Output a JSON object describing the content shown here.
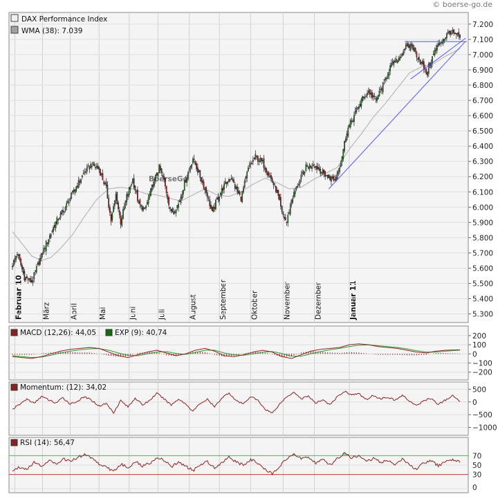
{
  "watermark": "© boerse-go.de",
  "background_watermark": "BoerseGo",
  "colors": {
    "up": "#2d8a2d",
    "down": "#b01818",
    "wma": "#b8b8b8",
    "trend": "#5555ff",
    "macd": "#8b2020",
    "signal": "#2a9a2a",
    "osc": "#8b2020",
    "rsi_over": "#33cc33",
    "rsi_under": "#cc3333"
  },
  "legend": {
    "price_name": "DAX Performance Index",
    "wma_label": "WMA (38): 7.039",
    "macd_label": "MACD (12,26): 44,05",
    "exp_label": "EXP (9): 40,74",
    "momentum_label": "Momentum: (12): 34,02",
    "rsi_label": "RSI (14): 56,47"
  },
  "chart_data": [
    {
      "type": "candlestick",
      "title": "DAX Performance Index",
      "ylim": [
        5280,
        7240
      ],
      "y_ticks": [
        "5.300",
        "5.400",
        "5.500",
        "5.600",
        "5.700",
        "5.800",
        "5.900",
        "6.000",
        "6.100",
        "6.200",
        "6.300",
        "6.400",
        "6.500",
        "6.600",
        "6.700",
        "6.800",
        "6.900",
        "7.000",
        "7.100",
        "7.200"
      ],
      "x_labels": [
        "Februar 10",
        "März",
        "April",
        "Mai",
        "Juni",
        "Juli",
        "August",
        "September",
        "Oktober",
        "November",
        "Dezember",
        "Januar 11"
      ],
      "bold_x_labels": [
        "Februar 10",
        "Januar 11"
      ],
      "grid": true,
      "close_path": [
        [
          0,
          5620
        ],
        [
          4,
          5700
        ],
        [
          10,
          5540
        ],
        [
          16,
          5510
        ],
        [
          22,
          5640
        ],
        [
          28,
          5760
        ],
        [
          36,
          5900
        ],
        [
          44,
          6000
        ],
        [
          52,
          6120
        ],
        [
          60,
          6230
        ],
        [
          66,
          6280
        ],
        [
          72,
          6250
        ],
        [
          78,
          6120
        ],
        [
          82,
          5910
        ],
        [
          86,
          6080
        ],
        [
          90,
          5900
        ],
        [
          95,
          6070
        ],
        [
          100,
          6180
        ],
        [
          105,
          6020
        ],
        [
          110,
          5980
        ],
        [
          116,
          6130
        ],
        [
          122,
          6260
        ],
        [
          126,
          6170
        ],
        [
          132,
          5960
        ],
        [
          138,
          6020
        ],
        [
          144,
          6180
        ],
        [
          150,
          6320
        ],
        [
          154,
          6240
        ],
        [
          158,
          6160
        ],
        [
          162,
          6080
        ],
        [
          166,
          5960
        ],
        [
          170,
          6050
        ],
        [
          176,
          6140
        ],
        [
          182,
          6200
        ],
        [
          186,
          6110
        ],
        [
          190,
          6060
        ],
        [
          196,
          6250
        ],
        [
          202,
          6330
        ],
        [
          208,
          6290
        ],
        [
          214,
          6200
        ],
        [
          220,
          6100
        ],
        [
          224,
          5960
        ],
        [
          228,
          5900
        ],
        [
          232,
          6050
        ],
        [
          238,
          6160
        ],
        [
          244,
          6260
        ],
        [
          250,
          6280
        ],
        [
          256,
          6240
        ],
        [
          262,
          6200
        ],
        [
          268,
          6180
        ],
        [
          273,
          6300
        ],
        [
          278,
          6500
        ],
        [
          284,
          6600
        ],
        [
          290,
          6700
        ],
        [
          296,
          6760
        ],
        [
          302,
          6700
        ],
        [
          308,
          6800
        ],
        [
          314,
          6920
        ],
        [
          320,
          6960
        ],
        [
          326,
          7040
        ],
        [
          332,
          7060
        ],
        [
          336,
          7000
        ],
        [
          340,
          6940
        ],
        [
          344,
          6880
        ],
        [
          348,
          6960
        ],
        [
          352,
          7040
        ],
        [
          356,
          7080
        ],
        [
          360,
          7120
        ],
        [
          364,
          7150
        ],
        [
          368,
          7130
        ],
        [
          372,
          7110
        ]
      ],
      "wma_path": [
        [
          0,
          5840
        ],
        [
          8,
          5760
        ],
        [
          16,
          5680
        ],
        [
          24,
          5650
        ],
        [
          32,
          5670
        ],
        [
          40,
          5730
        ],
        [
          50,
          5820
        ],
        [
          60,
          5940
        ],
        [
          70,
          6050
        ],
        [
          80,
          6120
        ],
        [
          90,
          6130
        ],
        [
          100,
          6120
        ],
        [
          110,
          6090
        ],
        [
          120,
          6080
        ],
        [
          130,
          6060
        ],
        [
          140,
          6040
        ],
        [
          150,
          6080
        ],
        [
          160,
          6120
        ],
        [
          170,
          6080
        ],
        [
          180,
          6070
        ],
        [
          190,
          6100
        ],
        [
          200,
          6150
        ],
        [
          210,
          6190
        ],
        [
          220,
          6160
        ],
        [
          230,
          6120
        ],
        [
          240,
          6130
        ],
        [
          250,
          6180
        ],
        [
          260,
          6220
        ],
        [
          270,
          6260
        ],
        [
          280,
          6380
        ],
        [
          290,
          6480
        ],
        [
          300,
          6590
        ],
        [
          310,
          6680
        ],
        [
          320,
          6780
        ],
        [
          330,
          6880
        ],
        [
          340,
          6920
        ],
        [
          350,
          6940
        ],
        [
          360,
          6990
        ],
        [
          372,
          7039
        ]
      ],
      "wma_value": 7039,
      "trendlines": [
        [
          [
            263,
            6120
          ],
          [
            372,
            7060
          ]
        ],
        [
          [
            331,
            6840
          ],
          [
            372,
            7080
          ]
        ]
      ],
      "resistance": [
        [
          326,
          7085
        ],
        [
          372,
          7085
        ]
      ]
    },
    {
      "type": "line",
      "title": "MACD",
      "series": [
        {
          "name": "MACD (12,26)",
          "last": 44.05
        },
        {
          "name": "EXP (9)",
          "last": 40.74
        }
      ],
      "ylim": [
        -240,
        260
      ],
      "y_ticks": [
        "200",
        "100",
        "0",
        "-100",
        "-200"
      ],
      "macd_path": [
        [
          0,
          -30
        ],
        [
          8,
          -40
        ],
        [
          16,
          -50
        ],
        [
          24,
          -30
        ],
        [
          32,
          0
        ],
        [
          40,
          30
        ],
        [
          48,
          50
        ],
        [
          56,
          60
        ],
        [
          64,
          70
        ],
        [
          72,
          60
        ],
        [
          80,
          20
        ],
        [
          88,
          -20
        ],
        [
          96,
          -40
        ],
        [
          104,
          -10
        ],
        [
          112,
          20
        ],
        [
          120,
          40
        ],
        [
          128,
          10
        ],
        [
          136,
          -20
        ],
        [
          144,
          0
        ],
        [
          152,
          40
        ],
        [
          160,
          60
        ],
        [
          168,
          30
        ],
        [
          176,
          -20
        ],
        [
          184,
          -30
        ],
        [
          192,
          -10
        ],
        [
          200,
          20
        ],
        [
          208,
          40
        ],
        [
          216,
          20
        ],
        [
          224,
          -30
        ],
        [
          232,
          -50
        ],
        [
          240,
          -10
        ],
        [
          248,
          30
        ],
        [
          256,
          50
        ],
        [
          264,
          60
        ],
        [
          272,
          70
        ],
        [
          280,
          100
        ],
        [
          288,
          110
        ],
        [
          296,
          100
        ],
        [
          304,
          80
        ],
        [
          312,
          70
        ],
        [
          320,
          60
        ],
        [
          328,
          40
        ],
        [
          336,
          20
        ],
        [
          344,
          10
        ],
        [
          352,
          30
        ],
        [
          360,
          40
        ],
        [
          372,
          44
        ]
      ],
      "signal_path": [
        [
          0,
          -20
        ],
        [
          8,
          -30
        ],
        [
          16,
          -40
        ],
        [
          24,
          -35
        ],
        [
          32,
          -15
        ],
        [
          40,
          10
        ],
        [
          48,
          30
        ],
        [
          56,
          45
        ],
        [
          64,
          55
        ],
        [
          72,
          58
        ],
        [
          80,
          40
        ],
        [
          88,
          10
        ],
        [
          96,
          -15
        ],
        [
          104,
          -20
        ],
        [
          112,
          0
        ],
        [
          120,
          20
        ],
        [
          128,
          25
        ],
        [
          136,
          5
        ],
        [
          144,
          -5
        ],
        [
          152,
          15
        ],
        [
          160,
          40
        ],
        [
          168,
          40
        ],
        [
          176,
          10
        ],
        [
          184,
          -10
        ],
        [
          192,
          -15
        ],
        [
          200,
          0
        ],
        [
          208,
          20
        ],
        [
          216,
          25
        ],
        [
          224,
          5
        ],
        [
          232,
          -25
        ],
        [
          240,
          -25
        ],
        [
          248,
          0
        ],
        [
          256,
          25
        ],
        [
          264,
          45
        ],
        [
          272,
          60
        ],
        [
          280,
          80
        ],
        [
          288,
          95
        ],
        [
          296,
          98
        ],
        [
          304,
          90
        ],
        [
          312,
          80
        ],
        [
          320,
          70
        ],
        [
          328,
          55
        ],
        [
          336,
          35
        ],
        [
          344,
          20
        ],
        [
          352,
          20
        ],
        [
          360,
          30
        ],
        [
          372,
          41
        ]
      ]
    },
    {
      "type": "line",
      "title": "Momentum",
      "series": [
        {
          "name": "Momentum: (12)",
          "last": 34.02
        }
      ],
      "ylim": [
        -1150,
        620
      ],
      "y_ticks": [
        "500",
        "0",
        "-500",
        "-1000"
      ],
      "path": [
        [
          0,
          -280
        ],
        [
          6,
          -100
        ],
        [
          12,
          120
        ],
        [
          18,
          -60
        ],
        [
          24,
          220
        ],
        [
          30,
          80
        ],
        [
          36,
          -40
        ],
        [
          42,
          160
        ],
        [
          48,
          -80
        ],
        [
          54,
          30
        ],
        [
          60,
          200
        ],
        [
          66,
          60
        ],
        [
          72,
          -160
        ],
        [
          78,
          -60
        ],
        [
          84,
          -420
        ],
        [
          90,
          60
        ],
        [
          96,
          -200
        ],
        [
          102,
          160
        ],
        [
          108,
          -120
        ],
        [
          114,
          60
        ],
        [
          120,
          340
        ],
        [
          126,
          120
        ],
        [
          132,
          -120
        ],
        [
          138,
          120
        ],
        [
          144,
          -80
        ],
        [
          150,
          -360
        ],
        [
          156,
          -60
        ],
        [
          162,
          100
        ],
        [
          168,
          -200
        ],
        [
          174,
          160
        ],
        [
          180,
          360
        ],
        [
          186,
          40
        ],
        [
          192,
          -80
        ],
        [
          198,
          220
        ],
        [
          204,
          60
        ],
        [
          210,
          -280
        ],
        [
          216,
          -440
        ],
        [
          222,
          -80
        ],
        [
          228,
          200
        ],
        [
          234,
          400
        ],
        [
          240,
          120
        ],
        [
          246,
          240
        ],
        [
          252,
          -60
        ],
        [
          258,
          100
        ],
        [
          264,
          -120
        ],
        [
          270,
          200
        ],
        [
          276,
          420
        ],
        [
          282,
          280
        ],
        [
          288,
          320
        ],
        [
          294,
          100
        ],
        [
          300,
          260
        ],
        [
          306,
          120
        ],
        [
          312,
          200
        ],
        [
          318,
          60
        ],
        [
          324,
          260
        ],
        [
          330,
          40
        ],
        [
          336,
          -160
        ],
        [
          342,
          60
        ],
        [
          348,
          140
        ],
        [
          354,
          -100
        ],
        [
          360,
          80
        ],
        [
          366,
          240
        ],
        [
          372,
          34
        ]
      ]
    },
    {
      "type": "line",
      "title": "RSI",
      "series": [
        {
          "name": "RSI (14)",
          "last": 56.47
        }
      ],
      "ylim": [
        0,
        100
      ],
      "y_ticks": [
        "70",
        "50",
        "30",
        "0"
      ],
      "levels": [
        70,
        30
      ],
      "path": [
        [
          0,
          38
        ],
        [
          6,
          46
        ],
        [
          12,
          42
        ],
        [
          18,
          56
        ],
        [
          24,
          48
        ],
        [
          30,
          60
        ],
        [
          36,
          52
        ],
        [
          42,
          64
        ],
        [
          48,
          58
        ],
        [
          54,
          66
        ],
        [
          60,
          72
        ],
        [
          66,
          66
        ],
        [
          72,
          52
        ],
        [
          78,
          46
        ],
        [
          84,
          36
        ],
        [
          90,
          52
        ],
        [
          96,
          44
        ],
        [
          102,
          58
        ],
        [
          108,
          48
        ],
        [
          114,
          54
        ],
        [
          120,
          66
        ],
        [
          126,
          60
        ],
        [
          132,
          46
        ],
        [
          138,
          56
        ],
        [
          144,
          48
        ],
        [
          150,
          38
        ],
        [
          156,
          50
        ],
        [
          162,
          58
        ],
        [
          168,
          44
        ],
        [
          174,
          56
        ],
        [
          180,
          68
        ],
        [
          186,
          56
        ],
        [
          192,
          50
        ],
        [
          198,
          62
        ],
        [
          204,
          54
        ],
        [
          210,
          40
        ],
        [
          216,
          32
        ],
        [
          222,
          48
        ],
        [
          228,
          62
        ],
        [
          234,
          72
        ],
        [
          240,
          64
        ],
        [
          246,
          68
        ],
        [
          252,
          54
        ],
        [
          258,
          62
        ],
        [
          264,
          50
        ],
        [
          270,
          64
        ],
        [
          276,
          74
        ],
        [
          282,
          66
        ],
        [
          288,
          70
        ],
        [
          294,
          58
        ],
        [
          300,
          64
        ],
        [
          306,
          56
        ],
        [
          312,
          60
        ],
        [
          318,
          52
        ],
        [
          324,
          62
        ],
        [
          330,
          50
        ],
        [
          336,
          42
        ],
        [
          342,
          54
        ],
        [
          348,
          60
        ],
        [
          354,
          48
        ],
        [
          360,
          56
        ],
        [
          366,
          62
        ],
        [
          372,
          56
        ]
      ]
    }
  ]
}
